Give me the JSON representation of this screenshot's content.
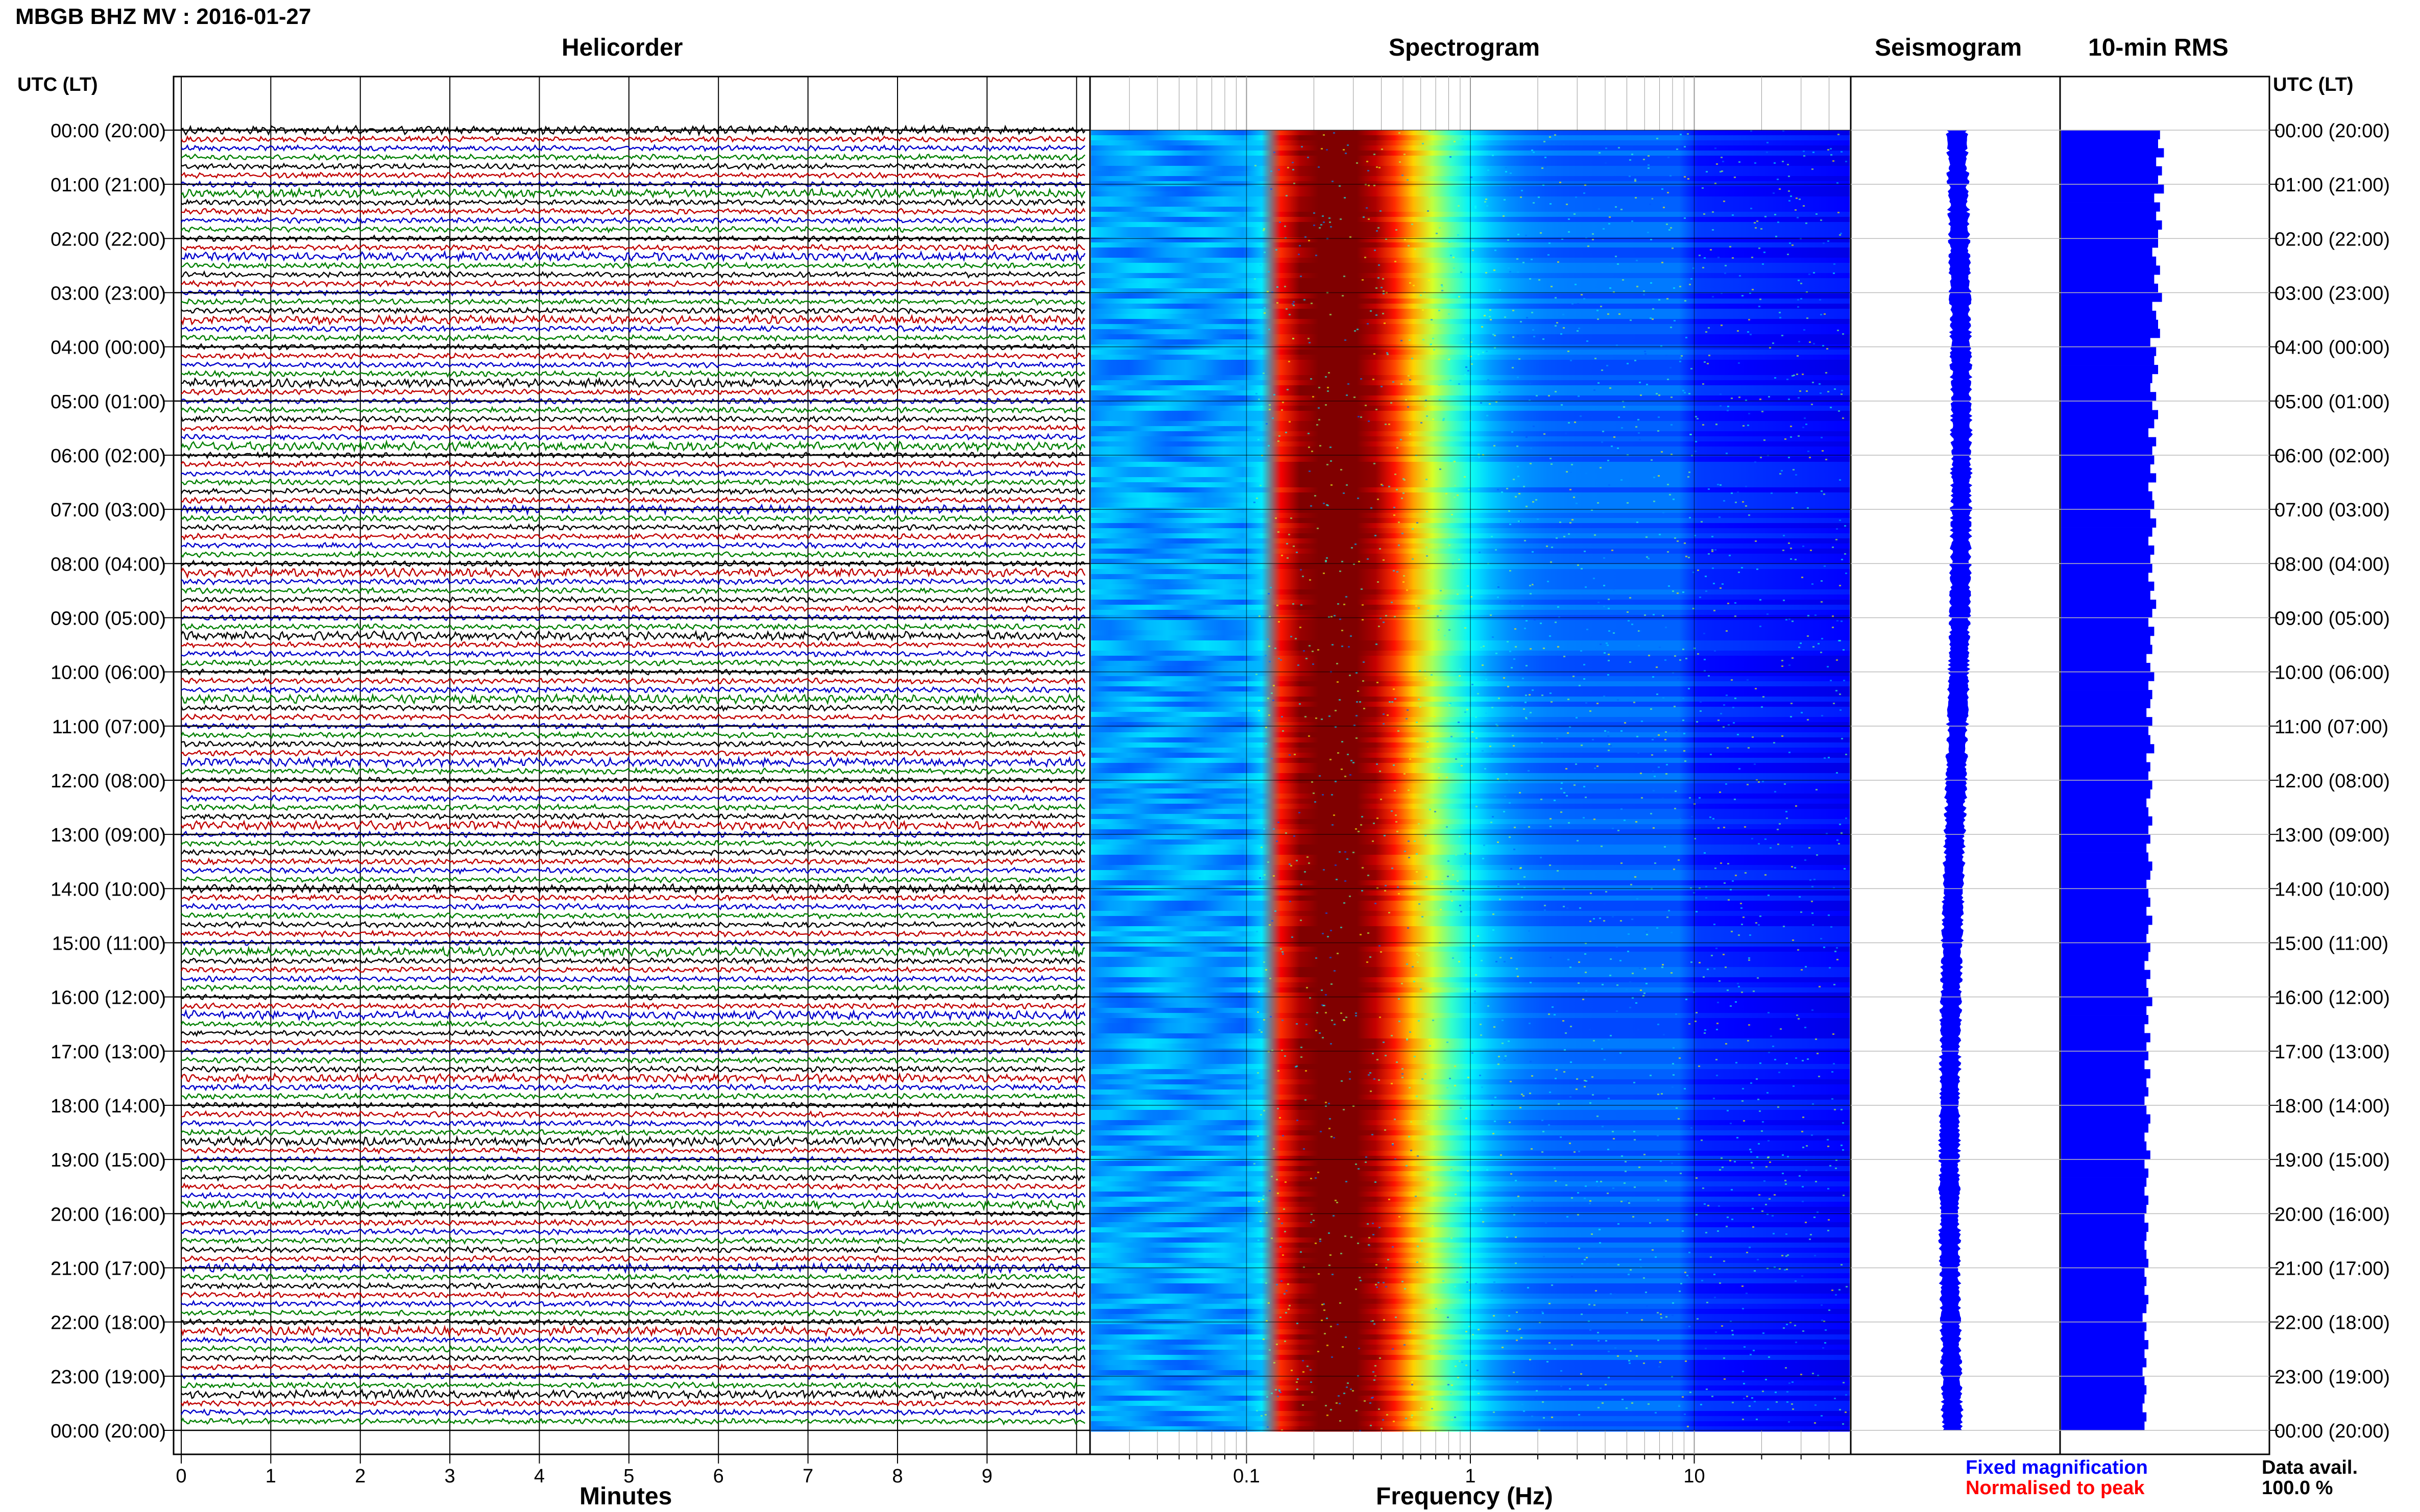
{
  "title": "MBGB BHZ MV : 2016-01-27",
  "panels": {
    "helicorder": "Helicorder",
    "spectrogram": "Spectrogram",
    "seismogram": "Seismogram",
    "rms": "10-min RMS"
  },
  "time_axis_header": "UTC (LT)",
  "time_labels": [
    "00:00 (20:00)",
    "01:00 (21:00)",
    "02:00 (22:00)",
    "03:00 (23:00)",
    "04:00 (00:00)",
    "05:00 (01:00)",
    "06:00 (02:00)",
    "07:00 (03:00)",
    "08:00 (04:00)",
    "09:00 (05:00)",
    "10:00 (06:00)",
    "11:00 (07:00)",
    "12:00 (08:00)",
    "13:00 (09:00)",
    "14:00 (10:00)",
    "15:00 (11:00)",
    "16:00 (12:00)",
    "17:00 (13:00)",
    "18:00 (14:00)",
    "19:00 (15:00)",
    "20:00 (16:00)",
    "21:00 (17:00)",
    "22:00 (18:00)",
    "23:00 (19:00)",
    "00:00 (20:00)"
  ],
  "legend": {
    "fixed": "Fixed magnification",
    "normalised": "Normalised to peak",
    "fixed_color": "#0000ff",
    "normalised_color": "#ff0000"
  },
  "data_avail": {
    "label": "Data avail.",
    "value": "100.0 %"
  },
  "colors": {
    "trace_cycle": [
      "#000000",
      "#c00000",
      "#0000cc",
      "#008000"
    ],
    "rms_bar": "#0000ff",
    "seismogram": "#0000ff"
  },
  "chart_data": [
    {
      "type": "line",
      "name": "helicorder",
      "title": "Helicorder",
      "xlabel": "Minutes",
      "x_ticks": [
        "0",
        "1",
        "2",
        "3",
        "4",
        "5",
        "6",
        "7",
        "8",
        "9"
      ],
      "xlim": [
        0,
        10
      ],
      "rows_per_hour": 6,
      "hours": 24
    },
    {
      "type": "heatmap",
      "name": "spectrogram",
      "title": "Spectrogram",
      "xlabel": "Frequency (Hz)",
      "x_scale": "log",
      "x_ticks": [
        "0.1",
        "1",
        "10"
      ],
      "xlim": [
        0.02,
        50
      ],
      "peak_band_hz": [
        0.2,
        0.3
      ],
      "colormap": "jet"
    },
    {
      "type": "line",
      "name": "seismogram",
      "title": "Seismogram"
    },
    {
      "type": "bar",
      "name": "rms",
      "title": "10-min RMS",
      "values": [
        0.51,
        0.5,
        0.53,
        0.49,
        0.52,
        0.5,
        0.53,
        0.48,
        0.51,
        0.49,
        0.52,
        0.5,
        0.5,
        0.47,
        0.49,
        0.51,
        0.48,
        0.5,
        0.52,
        0.47,
        0.49,
        0.5,
        0.51,
        0.46,
        0.49,
        0.48,
        0.5,
        0.47,
        0.46,
        0.49,
        0.47,
        0.5,
        0.48,
        0.45,
        0.49,
        0.47,
        0.48,
        0.46,
        0.49,
        0.45,
        0.47,
        0.48,
        0.46,
        0.49,
        0.47,
        0.45,
        0.48,
        0.46,
        0.47,
        0.45,
        0.48,
        0.46,
        0.49,
        0.47,
        0.45,
        0.48,
        0.46,
        0.47,
        0.44,
        0.46,
        0.48,
        0.45,
        0.47,
        0.46,
        0.44,
        0.47,
        0.45,
        0.46,
        0.48,
        0.44,
        0.46,
        0.45,
        0.47,
        0.46,
        0.44,
        0.45,
        0.47,
        0.45,
        0.46,
        0.44,
        0.45,
        0.47,
        0.46,
        0.44,
        0.45,
        0.46,
        0.44,
        0.47,
        0.45,
        0.44,
        0.46,
        0.45,
        0.43,
        0.46,
        0.44,
        0.45,
        0.47,
        0.44,
        0.45,
        0.43,
        0.46,
        0.44,
        0.45,
        0.43,
        0.46,
        0.44,
        0.45,
        0.43,
        0.44,
        0.46,
        0.45,
        0.43,
        0.44,
        0.46,
        0.43,
        0.45,
        0.44,
        0.43,
        0.45,
        0.44,
        0.43,
        0.45,
        0.44,
        0.43,
        0.44,
        0.45,
        0.43,
        0.44,
        0.43,
        0.45,
        0.44,
        0.42,
        0.44,
        0.43,
        0.45,
        0.43,
        0.44,
        0.42,
        0.43,
        0.44,
        0.43,
        0.42,
        0.44,
        0.43
      ]
    }
  ]
}
